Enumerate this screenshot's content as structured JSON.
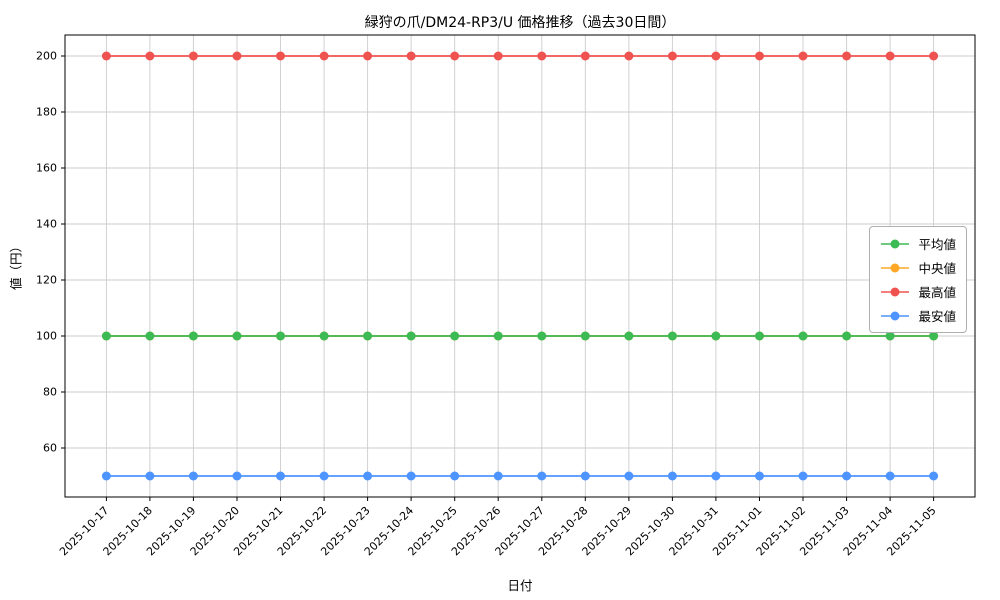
{
  "chart_data": {
    "type": "line",
    "title": "緑狩の爪/DM24-RP3/U 価格推移（過去30日間）",
    "xlabel": "日付",
    "ylabel": "値（円）",
    "x": [
      "2025-10-17",
      "2025-10-18",
      "2025-10-19",
      "2025-10-20",
      "2025-10-21",
      "2025-10-22",
      "2025-10-23",
      "2025-10-24",
      "2025-10-25",
      "2025-10-26",
      "2025-10-27",
      "2025-10-28",
      "2025-10-29",
      "2025-10-30",
      "2025-10-31",
      "2025-11-01",
      "2025-11-02",
      "2025-11-03",
      "2025-11-04",
      "2025-11-05"
    ],
    "series": [
      {
        "name": "平均値",
        "color": "#3cba54",
        "values": [
          100,
          100,
          100,
          100,
          100,
          100,
          100,
          100,
          100,
          100,
          100,
          100,
          100,
          100,
          100,
          100,
          100,
          100,
          100,
          100
        ]
      },
      {
        "name": "中央値",
        "color": "#ffa726",
        "values": [
          100,
          100,
          100,
          100,
          100,
          100,
          100,
          100,
          100,
          100,
          100,
          100,
          100,
          100,
          100,
          100,
          100,
          100,
          100,
          100
        ]
      },
      {
        "name": "最高値",
        "color": "#ef5350",
        "values": [
          200,
          200,
          200,
          200,
          200,
          200,
          200,
          200,
          200,
          200,
          200,
          200,
          200,
          200,
          200,
          200,
          200,
          200,
          200,
          200
        ]
      },
      {
        "name": "最安値",
        "color": "#4d94ff",
        "values": [
          50,
          50,
          50,
          50,
          50,
          50,
          50,
          50,
          50,
          50,
          50,
          50,
          50,
          50,
          50,
          50,
          50,
          50,
          50,
          50
        ]
      }
    ],
    "ylim": [
      42.5,
      207.5
    ],
    "yticks": [
      60,
      80,
      100,
      120,
      140,
      160,
      180,
      200
    ],
    "grid": true,
    "legend_position": "center-right"
  }
}
